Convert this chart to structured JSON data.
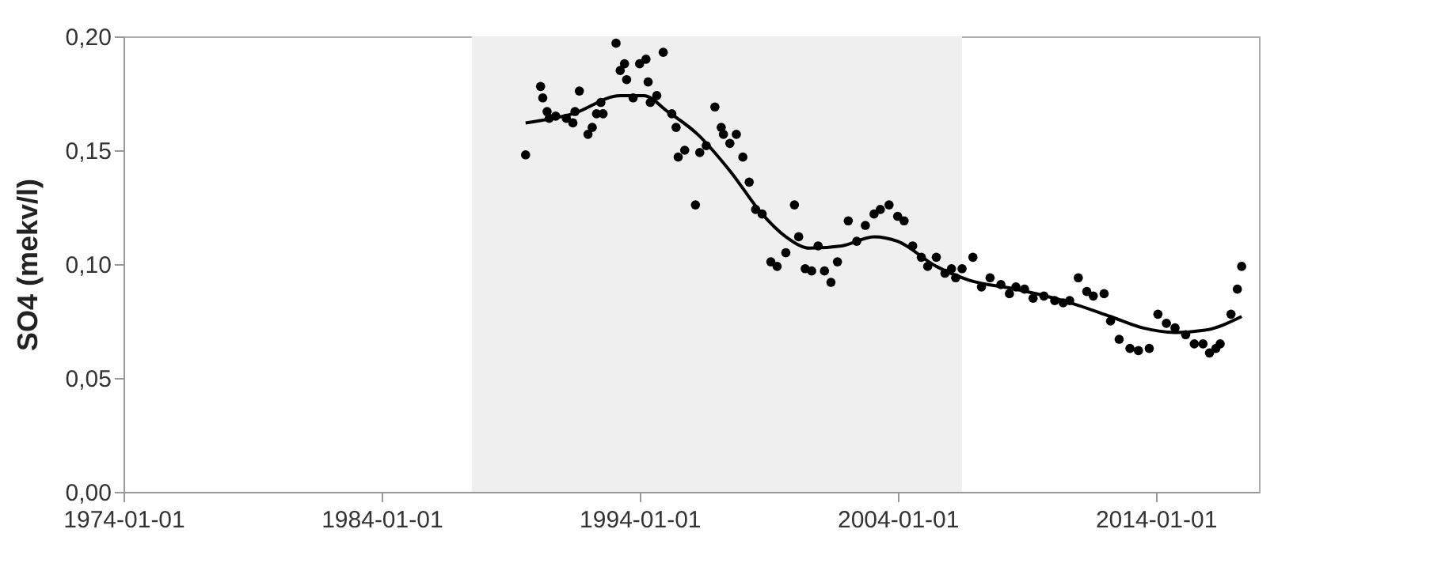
{
  "chart_data": {
    "type": "scatter",
    "ylabel": "SO4 (mekv/l)",
    "marker": "circle",
    "xlim": [
      "1974-01-01",
      "2018-01-01"
    ],
    "xticks": [
      {
        "value": "1974-01-01",
        "label": "1974-01-01"
      },
      {
        "value": "1984-01-01",
        "label": "1984-01-01"
      },
      {
        "value": "1994-01-01",
        "label": "1994-01-01"
      },
      {
        "value": "2004-01-01",
        "label": "2004-01-01"
      },
      {
        "value": "2014-01-01",
        "label": "2014-01-01"
      }
    ],
    "ylim": [
      0,
      0.2
    ],
    "yticks": [
      {
        "value": 0,
        "label": "0,00"
      },
      {
        "value": 0.05,
        "label": "0,05"
      },
      {
        "value": 0.1,
        "label": "0,10"
      },
      {
        "value": 0.15,
        "label": "0,15"
      },
      {
        "value": 0.2,
        "label": "0,20"
      }
    ],
    "bands": [
      {
        "axis": "x",
        "from": "1987-07",
        "to": "2006-07",
        "color": "#efefef"
      }
    ],
    "series": [
      {
        "type": "scatter",
        "color": "#000000",
        "x": [
          "1989-08",
          "1990-03",
          "1990-04",
          "1990-06",
          "1990-07",
          "1990-10",
          "1991-03",
          "1991-06",
          "1991-07",
          "1991-09",
          "1992-01",
          "1992-03",
          "1992-05",
          "1992-07",
          "1992-08",
          "1993-02",
          "1993-04",
          "1993-06",
          "1993-07",
          "1993-10",
          "1994-01",
          "1994-04",
          "1994-05",
          "1994-06",
          "1994-09",
          "1994-12",
          "1995-04",
          "1995-06",
          "1995-07",
          "1995-10",
          "1996-03",
          "1996-05",
          "1996-08",
          "1996-12",
          "1997-03",
          "1997-04",
          "1997-07",
          "1997-10",
          "1998-01",
          "1998-04",
          "1998-07",
          "1998-10",
          "1999-02",
          "1999-05",
          "1999-09",
          "2000-01",
          "2000-03",
          "2000-06",
          "2000-09",
          "2000-12",
          "2001-03",
          "2001-06",
          "2001-09",
          "2002-02",
          "2002-06",
          "2002-10",
          "2003-02",
          "2003-05",
          "2003-09",
          "2004-01",
          "2004-04",
          "2004-08",
          "2004-12",
          "2005-03",
          "2005-07",
          "2005-11",
          "2006-02",
          "2006-04",
          "2006-07",
          "2006-12",
          "2007-04",
          "2007-08",
          "2008-01",
          "2008-05",
          "2008-08",
          "2008-12",
          "2009-04",
          "2009-09",
          "2010-02",
          "2010-06",
          "2010-09",
          "2011-01",
          "2011-05",
          "2011-08",
          "2012-01",
          "2012-04",
          "2012-08",
          "2013-01",
          "2013-05",
          "2013-10",
          "2014-02",
          "2014-06",
          "2014-10",
          "2015-03",
          "2015-07",
          "2015-11",
          "2016-02",
          "2016-05",
          "2016-07",
          "2016-12",
          "2017-03",
          "2017-05"
        ],
        "values": [
          0.148,
          0.178,
          0.173,
          0.167,
          0.164,
          0.165,
          0.164,
          0.162,
          0.167,
          0.176,
          0.157,
          0.16,
          0.166,
          0.171,
          0.166,
          0.197,
          0.185,
          0.188,
          0.181,
          0.173,
          0.188,
          0.19,
          0.18,
          0.171,
          0.174,
          0.193,
          0.166,
          0.16,
          0.147,
          0.15,
          0.126,
          0.149,
          0.152,
          0.169,
          0.16,
          0.157,
          0.153,
          0.157,
          0.147,
          0.136,
          0.124,
          0.122,
          0.101,
          0.099,
          0.105,
          0.126,
          0.112,
          0.098,
          0.097,
          0.108,
          0.097,
          0.092,
          0.101,
          0.119,
          0.11,
          0.117,
          0.122,
          0.124,
          0.126,
          0.121,
          0.119,
          0.108,
          0.103,
          0.099,
          0.103,
          0.096,
          0.098,
          0.094,
          0.098,
          0.103,
          0.09,
          0.094,
          0.091,
          0.087,
          0.09,
          0.089,
          0.085,
          0.086,
          0.084,
          0.083,
          0.084,
          0.094,
          0.088,
          0.086,
          0.087,
          0.075,
          0.067,
          0.063,
          0.062,
          0.063,
          0.078,
          0.074,
          0.072,
          0.069,
          0.065,
          0.065,
          0.061,
          0.063,
          0.065,
          0.078,
          0.089,
          0.099
        ]
      },
      {
        "type": "line",
        "color": "#000000",
        "marker": "none",
        "x": [
          "1989-08",
          "1991-06",
          "1993-04",
          "1994-03",
          "1995-02",
          "1996-04",
          "1997-07",
          "1998-10",
          "1999-09",
          "2000-08",
          "2001-11",
          "2003-02",
          "2004-01",
          "2005-07",
          "2006-10",
          "2008-08",
          "2010-06",
          "2012-04",
          "2013-07",
          "2014-10",
          "2015-12",
          "2017-05"
        ],
        "values": [
          0.162,
          0.166,
          0.174,
          0.174,
          0.167,
          0.157,
          0.141,
          0.122,
          0.112,
          0.107,
          0.108,
          0.112,
          0.11,
          0.099,
          0.093,
          0.089,
          0.084,
          0.077,
          0.072,
          0.07,
          0.071,
          0.077
        ]
      }
    ]
  }
}
